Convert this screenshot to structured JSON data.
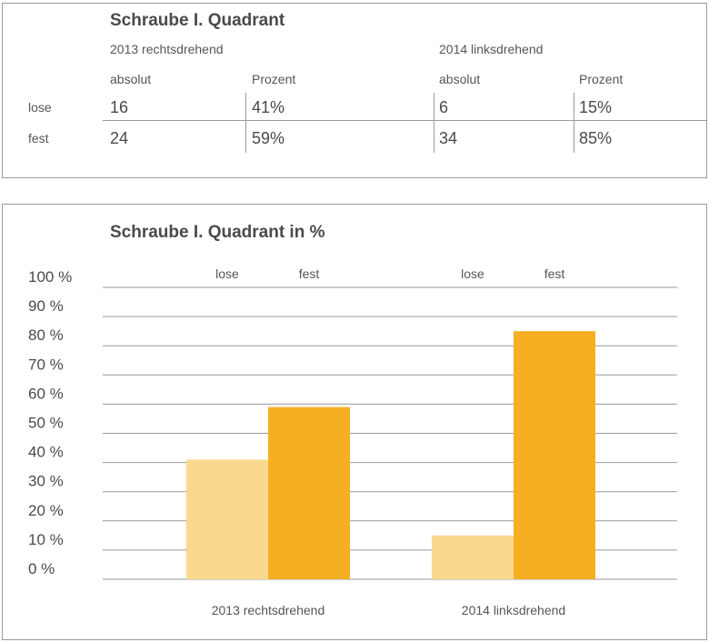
{
  "table": {
    "title": "Schraube I. Quadrant",
    "groups": [
      "2013 rechtsdrehend",
      "2014 linksdrehend"
    ],
    "subheaders": [
      "absolut",
      "Prozent",
      "absolut",
      "Prozent"
    ],
    "rows": [
      {
        "label": "lose",
        "cells": [
          "16",
          "41%",
          "6",
          "15%"
        ]
      },
      {
        "label": "fest",
        "cells": [
          "24",
          "59%",
          "34",
          "85%"
        ]
      }
    ]
  },
  "chart_data": {
    "type": "bar",
    "title": "Schraube I. Quadrant in %",
    "categories": [
      "2013 rechtsdrehend",
      "2014 linksdrehend"
    ],
    "series": [
      {
        "name": "lose",
        "values": [
          41,
          15
        ],
        "color": "#fbd88f"
      },
      {
        "name": "fest",
        "values": [
          59,
          85
        ],
        "color": "#f6ae22"
      }
    ],
    "ylim": [
      0,
      100
    ],
    "yticks": [
      "0 %",
      "10 %",
      "20 %",
      "30 %",
      "40 %",
      "50 %",
      "60 %",
      "70 %",
      "80 %",
      "90 %",
      "100 %"
    ],
    "grid": true,
    "legend": "top"
  }
}
